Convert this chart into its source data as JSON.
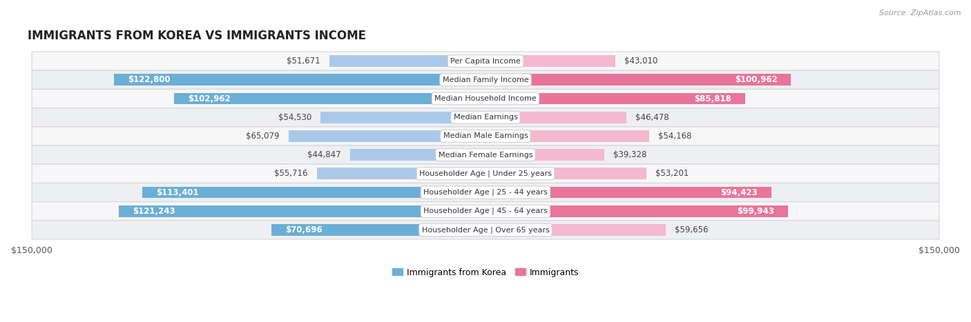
{
  "title": "IMMIGRANTS FROM KOREA VS IMMIGRANTS INCOME",
  "source": "Source: ZipAtlas.com",
  "categories": [
    "Per Capita Income",
    "Median Family Income",
    "Median Household Income",
    "Median Earnings",
    "Median Male Earnings",
    "Median Female Earnings",
    "Householder Age | Under 25 years",
    "Householder Age | 25 - 44 years",
    "Householder Age | 45 - 64 years",
    "Householder Age | Over 65 years"
  ],
  "korea_values": [
    51671,
    122800,
    102962,
    54530,
    65079,
    44847,
    55716,
    113401,
    121243,
    70696
  ],
  "immigrant_values": [
    43010,
    100962,
    85818,
    46478,
    54168,
    39328,
    53201,
    94423,
    99943,
    59656
  ],
  "korea_labels": [
    "$51,671",
    "$122,800",
    "$102,962",
    "$54,530",
    "$65,079",
    "$44,847",
    "$55,716",
    "$113,401",
    "$121,243",
    "$70,696"
  ],
  "immigrant_labels": [
    "$43,010",
    "$100,962",
    "$85,818",
    "$46,478",
    "$54,168",
    "$39,328",
    "$53,201",
    "$94,423",
    "$99,943",
    "$59,656"
  ],
  "korea_color_light": "#aac9e8",
  "korea_color_dark": "#6baed6",
  "immigrant_color_light": "#f4b8cf",
  "immigrant_color_dark": "#e8749a",
  "max_value": 150000,
  "bg_color": "#ffffff",
  "row_bg_even": "#f7f7f8",
  "row_bg_odd": "#eeeff2",
  "row_border": "#d5d6db",
  "legend_korea": "Immigrants from Korea",
  "legend_immigrants": "Immigrants",
  "inside_label_threshold": 70000,
  "label_fontsize": 8.5,
  "cat_fontsize": 8.0
}
